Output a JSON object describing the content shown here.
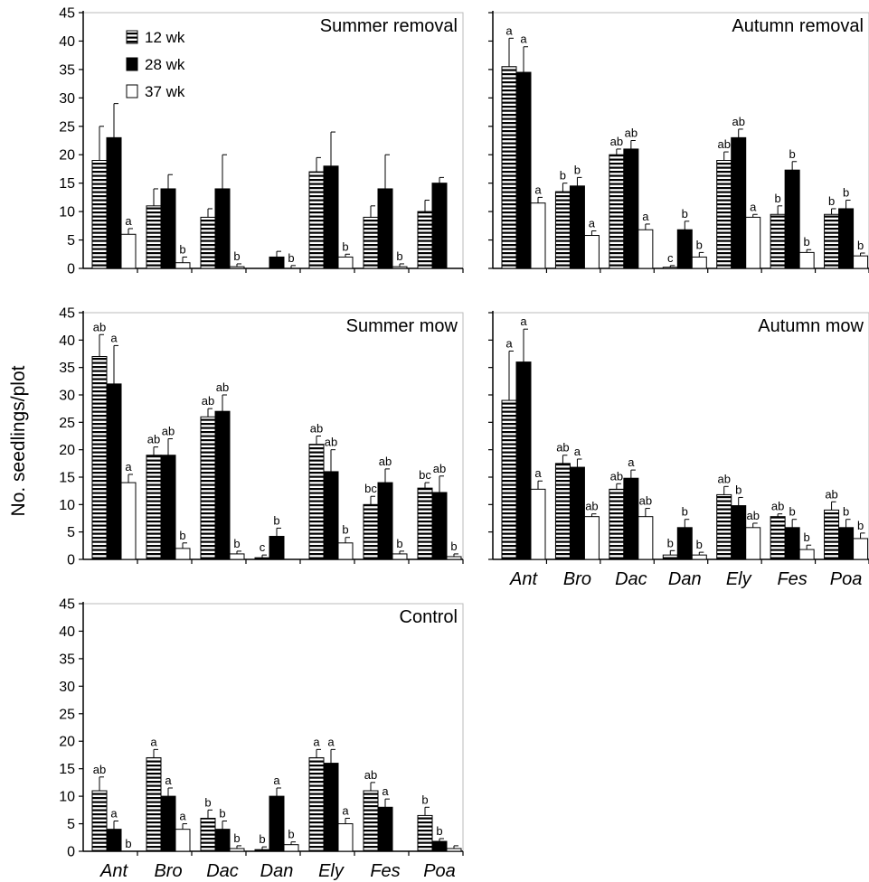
{
  "ylabel": "No. seedlings/plot",
  "legend": [
    {
      "label": "12 wk",
      "fill": "stripes"
    },
    {
      "label": "28 wk",
      "fill": "#000000"
    },
    {
      "label": "37 wk",
      "fill": "#ffffff"
    }
  ],
  "colors": {
    "black": "#000000",
    "white": "#ffffff",
    "frame": "#bbbbbb"
  },
  "chart_data": [
    {
      "type": "bar",
      "title": "Summer removal",
      "ylim": [
        0,
        45
      ],
      "yticks": [
        0,
        5,
        10,
        15,
        20,
        25,
        30,
        35,
        40,
        45
      ],
      "categories": [
        "Ant",
        "Bro",
        "Dac",
        "Dan",
        "Ely",
        "Fes",
        "Poa"
      ],
      "show_category_labels": false,
      "legend": "top-left",
      "series": [
        {
          "name": "12 wk",
          "values": [
            19,
            11,
            9,
            0,
            17,
            9,
            10
          ],
          "err": [
            6,
            3,
            1.5,
            0,
            2.5,
            2,
            2
          ],
          "labels": [
            "",
            "",
            "",
            "",
            "",
            "",
            ""
          ]
        },
        {
          "name": "28 wk",
          "values": [
            23,
            14,
            14,
            2,
            18,
            14,
            15
          ],
          "err": [
            6,
            2.5,
            6,
            1,
            6,
            6,
            1
          ],
          "labels": [
            "",
            "",
            "",
            "",
            "",
            "",
            ""
          ]
        },
        {
          "name": "37 wk",
          "values": [
            6,
            1,
            0.3,
            0,
            2,
            0.3,
            null
          ],
          "err": [
            1,
            1,
            0.5,
            0.5,
            0.5,
            0.5,
            0
          ],
          "labels": [
            "a",
            "b",
            "b",
            "b",
            "b",
            "b",
            ""
          ]
        }
      ]
    },
    {
      "type": "bar",
      "title": "Autumn removal",
      "ylim": [
        0,
        45
      ],
      "yticks": [
        0,
        5,
        10,
        15,
        20,
        25,
        30,
        35,
        40,
        45
      ],
      "categories": [
        "Ant",
        "Bro",
        "Dac",
        "Dan",
        "Ely",
        "Fes",
        "Poa"
      ],
      "show_category_labels": false,
      "series": [
        {
          "name": "12 wk",
          "values": [
            35.5,
            13.5,
            20,
            0.2,
            19,
            9.5,
            9.5
          ],
          "err": [
            5,
            1.5,
            1,
            0.3,
            1.5,
            1.5,
            1
          ],
          "labels": [
            "a",
            "b",
            "ab",
            "c",
            "ab",
            "b",
            "b"
          ]
        },
        {
          "name": "28 wk",
          "values": [
            34.5,
            14.5,
            21,
            6.8,
            23,
            17.3,
            10.5
          ],
          "err": [
            4.5,
            1.5,
            1.5,
            1.5,
            1.5,
            1.5,
            1.5
          ],
          "labels": [
            "a",
            "b",
            "ab",
            "b",
            "ab",
            "b",
            "b"
          ]
        },
        {
          "name": "37 wk",
          "values": [
            11.5,
            5.8,
            6.8,
            2,
            9,
            2.8,
            2.2
          ],
          "err": [
            1,
            0.8,
            1,
            0.8,
            0.5,
            0.5,
            0.5
          ],
          "labels": [
            "a",
            "a",
            "a",
            "b",
            "a",
            "b",
            "b"
          ]
        }
      ]
    },
    {
      "type": "bar",
      "title": "Summer mow",
      "ylim": [
        0,
        45
      ],
      "yticks": [
        0,
        5,
        10,
        15,
        20,
        25,
        30,
        35,
        40,
        45
      ],
      "categories": [
        "Ant",
        "Bro",
        "Dac",
        "Dan",
        "Ely",
        "Fes",
        "Poa"
      ],
      "show_category_labels": false,
      "series": [
        {
          "name": "12 wk",
          "values": [
            37,
            19,
            26,
            0.3,
            21,
            10,
            13
          ],
          "err": [
            4,
            1.5,
            1.5,
            0.5,
            1.5,
            1.5,
            1
          ],
          "labels": [
            "ab",
            "ab",
            "ab",
            "c",
            "ab",
            "bc",
            "bc"
          ]
        },
        {
          "name": "28 wk",
          "values": [
            32,
            19,
            27,
            4.2,
            16,
            14,
            12.2
          ],
          "err": [
            7,
            3,
            3,
            1.5,
            4,
            2.5,
            3
          ],
          "labels": [
            "a",
            "ab",
            "ab",
            "b",
            "ab",
            "ab",
            "ab"
          ]
        },
        {
          "name": "37 wk",
          "values": [
            14,
            2,
            1,
            0,
            3,
            1,
            0.5
          ],
          "err": [
            1.5,
            1,
            0.5,
            0,
            1,
            0.5,
            0.5
          ],
          "labels": [
            "a",
            "b",
            "b",
            "",
            "b",
            "b",
            "b"
          ]
        }
      ]
    },
    {
      "type": "bar",
      "title": "Autumn mow",
      "ylim": [
        0,
        45
      ],
      "yticks": [
        0,
        5,
        10,
        15,
        20,
        25,
        30,
        35,
        40,
        45
      ],
      "categories": [
        "Ant",
        "Bro",
        "Dac",
        "Dan",
        "Ely",
        "Fes",
        "Poa"
      ],
      "show_category_labels": true,
      "series": [
        {
          "name": "12 wk",
          "values": [
            29,
            17.5,
            12.8,
            0.8,
            11.8,
            7.8,
            9
          ],
          "err": [
            9,
            1.5,
            1,
            0.8,
            1.5,
            0.5,
            1.5
          ],
          "labels": [
            "a",
            "ab",
            "ab",
            "b",
            "ab",
            "ab",
            "ab"
          ]
        },
        {
          "name": "28 wk",
          "values": [
            36,
            16.8,
            14.8,
            5.8,
            9.8,
            5.8,
            5.8
          ],
          "err": [
            6,
            1.5,
            1.5,
            1.5,
            1.5,
            1.5,
            1.5
          ],
          "labels": [
            "a",
            "a",
            "a",
            "b",
            "b",
            "b",
            "b"
          ]
        },
        {
          "name": "37 wk",
          "values": [
            12.8,
            7.8,
            7.8,
            0.8,
            5.8,
            1.8,
            3.8
          ],
          "err": [
            1.5,
            0.5,
            1.5,
            0.5,
            0.8,
            0.8,
            1
          ],
          "labels": [
            "a",
            "ab",
            "ab",
            "b",
            "ab",
            "b",
            "b"
          ]
        }
      ]
    },
    {
      "type": "bar",
      "title": "Control",
      "ylim": [
        0,
        45
      ],
      "yticks": [
        0,
        5,
        10,
        15,
        20,
        25,
        30,
        35,
        40,
        45
      ],
      "categories": [
        "Ant",
        "Bro",
        "Dac",
        "Dan",
        "Ely",
        "Fes",
        "Poa"
      ],
      "show_category_labels": true,
      "series": [
        {
          "name": "12 wk",
          "values": [
            11,
            17,
            6,
            0.3,
            17,
            11,
            6.5
          ],
          "err": [
            2.5,
            1.5,
            1.5,
            0.5,
            1.5,
            1.5,
            1.5
          ],
          "labels": [
            "ab",
            "a",
            "b",
            "b",
            "a",
            "ab",
            "b"
          ]
        },
        {
          "name": "28 wk",
          "values": [
            4,
            10,
            4,
            10,
            16,
            8,
            1.8
          ],
          "err": [
            1.5,
            1.5,
            1.5,
            1.5,
            2.5,
            1.5,
            0.5
          ],
          "labels": [
            "a",
            "a",
            "b",
            "a",
            "a",
            "a",
            "b"
          ]
        },
        {
          "name": "37 wk",
          "values": [
            0,
            4,
            0.5,
            1.2,
            5,
            0,
            0.5
          ],
          "err": [
            0,
            1,
            0.5,
            0.5,
            1,
            0,
            0.5
          ],
          "labels": [
            "b",
            "a",
            "b",
            "b",
            "a",
            "",
            ""
          ]
        }
      ]
    }
  ]
}
